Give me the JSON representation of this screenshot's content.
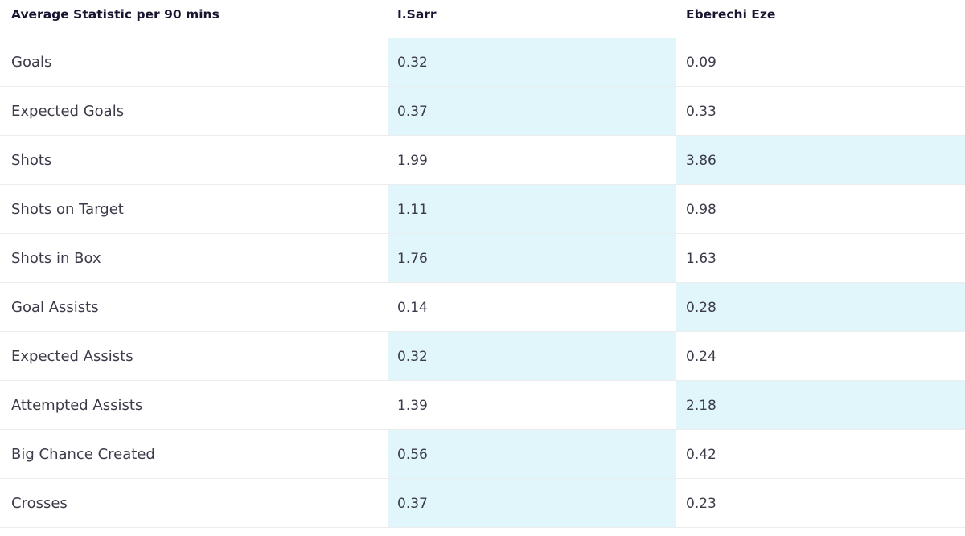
{
  "header": {
    "stat_label": "Average Statistic per 90 mins",
    "player_a": "I.Sarr",
    "player_b": "Eberechi Eze"
  },
  "colors": {
    "highlight": "#e0f6fa",
    "text": "#3b3b4a",
    "header_text": "#1a1430"
  },
  "rows": [
    {
      "label": "Goals",
      "a": "0.32",
      "b": "0.09",
      "highlight": "a"
    },
    {
      "label": "Expected Goals",
      "a": "0.37",
      "b": "0.33",
      "highlight": "a"
    },
    {
      "label": "Shots",
      "a": "1.99",
      "b": "3.86",
      "highlight": "b"
    },
    {
      "label": "Shots on Target",
      "a": "1.11",
      "b": "0.98",
      "highlight": "a"
    },
    {
      "label": "Shots in Box",
      "a": "1.76",
      "b": "1.63",
      "highlight": "a"
    },
    {
      "label": "Goal Assists",
      "a": "0.14",
      "b": "0.28",
      "highlight": "b"
    },
    {
      "label": "Expected Assists",
      "a": "0.32",
      "b": "0.24",
      "highlight": "a"
    },
    {
      "label": "Attempted Assists",
      "a": "1.39",
      "b": "2.18",
      "highlight": "b"
    },
    {
      "label": "Big Chance Created",
      "a": "0.56",
      "b": "0.42",
      "highlight": "a"
    },
    {
      "label": "Crosses",
      "a": "0.37",
      "b": "0.23",
      "highlight": "a"
    }
  ]
}
